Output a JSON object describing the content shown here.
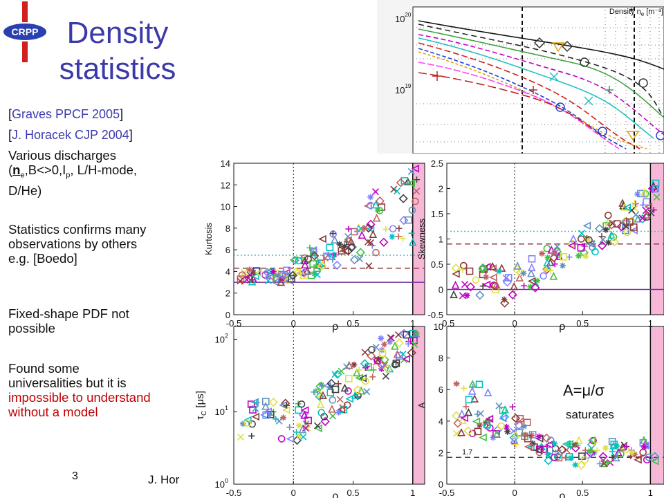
{
  "logo": {
    "text": "CRPP"
  },
  "slide_title": {
    "line1": "Density",
    "line2": "statistics"
  },
  "references": [
    {
      "open": "[",
      "text": "Graves PPCF 2005",
      "close": "]"
    },
    {
      "open": "[",
      "text": "J. Horacek CJP 2004",
      "close": "]"
    }
  ],
  "paragraph1": {
    "line1": "Various discharges",
    "open": "(",
    "ne": "n",
    "ne_sub": "e",
    "rest1": ",B<>0,I",
    "ip_sub": "p",
    "rest2": ", L/H-mode,",
    "line3": "D/He)"
  },
  "paragraph2": [
    "Statistics confirms many",
    "observations by others",
    "e.g. [Boedo]"
  ],
  "paragraph3": [
    "Fixed-shape PDF not",
    "possible"
  ],
  "paragraph4": {
    "line1": "Found some",
    "line2": "universalities but it is",
    "red1": "impossible to understand",
    "red2": "without a model"
  },
  "footer": {
    "page": "3",
    "author": "J. Hor"
  },
  "annotation": {
    "eq_a": "A=",
    "eq_mu": "μ",
    "eq_slash": "/",
    "eq_sigma": "σ",
    "saturates": "saturates",
    "level": "1.7"
  },
  "inset_plot": {
    "label_density": "Density n",
    "label_sub": "e",
    "label_unit": " [m⁻³]",
    "tick_top": "10",
    "tick_top_exp": "20",
    "tick_bottom": "10",
    "tick_bottom_exp": "19"
  },
  "chart_data": [
    {
      "type": "scatter",
      "ylabel": "Kurtosis",
      "xlabel": "ρ",
      "xlim": [
        -0.5,
        1.1
      ],
      "ylim": [
        0,
        14
      ],
      "y_ticks": [
        "0",
        "2",
        "4",
        "6",
        "8",
        "10",
        "12",
        "14"
      ],
      "x_ticks": [
        "-0.5",
        "0",
        "0.5",
        "1"
      ],
      "ref_lines": [
        {
          "y": 3,
          "color": "#7030a0",
          "style": "solid"
        },
        {
          "y": 4.3,
          "color": "#8b3a3a",
          "style": "dashed"
        },
        {
          "y": 5.5,
          "color": "#4db8c8",
          "style": "dotted"
        }
      ]
    },
    {
      "type": "scatter",
      "ylabel": "Skewness",
      "xlabel": "ρ",
      "xlim": [
        -0.5,
        1.1
      ],
      "ylim": [
        -0.5,
        2.5
      ],
      "y_ticks": [
        "-0.5",
        "0",
        "0.5",
        "1",
        "1.5",
        "2",
        "2.5"
      ],
      "x_ticks": [
        "-0.5",
        "0",
        "0.5",
        "1"
      ],
      "ref_lines": [
        {
          "y": 0,
          "color": "#7030a0",
          "style": "solid"
        },
        {
          "y": 0.9,
          "color": "#8b3a3a",
          "style": "dashed"
        },
        {
          "y": 1.15,
          "color": "#4db8c8",
          "style": "dotted"
        }
      ]
    },
    {
      "type": "scatter",
      "ylabel": "τ",
      "ylabel_sub": "C",
      "ylabel_unit": "[μs]",
      "xlabel": "ρ",
      "xlim": [
        -0.5,
        1.1
      ],
      "ylim": [
        1,
        150
      ],
      "log_y": true,
      "y_ticks": [
        "10",
        "10",
        "10"
      ],
      "y_tick_exps": [
        "0",
        "1",
        "2"
      ],
      "x_ticks": [
        "-0.5",
        "0",
        "0.5",
        "1"
      ]
    },
    {
      "type": "scatter",
      "ylabel": "A",
      "xlabel": "ρ",
      "xlim": [
        -0.5,
        1.1
      ],
      "ylim": [
        0,
        10
      ],
      "y_ticks": [
        "0",
        "2",
        "4",
        "6",
        "8",
        "10"
      ],
      "x_ticks": [
        "-0.5",
        "0",
        "0.5",
        "1"
      ],
      "ref_lines": [
        {
          "y": 1.7,
          "color": "#444444",
          "style": "dashed"
        }
      ]
    }
  ],
  "colors": {
    "title": "#3a3aa8",
    "link": "#3b3bb0",
    "red": "#c00000",
    "shade": "#f7b8d8",
    "markers": [
      "#c000c0",
      "#404040",
      "#00c0c0",
      "#8b3a3a",
      "#6090c0",
      "#40c040",
      "#c06060",
      "#e0e040",
      "#8080ff"
    ]
  }
}
